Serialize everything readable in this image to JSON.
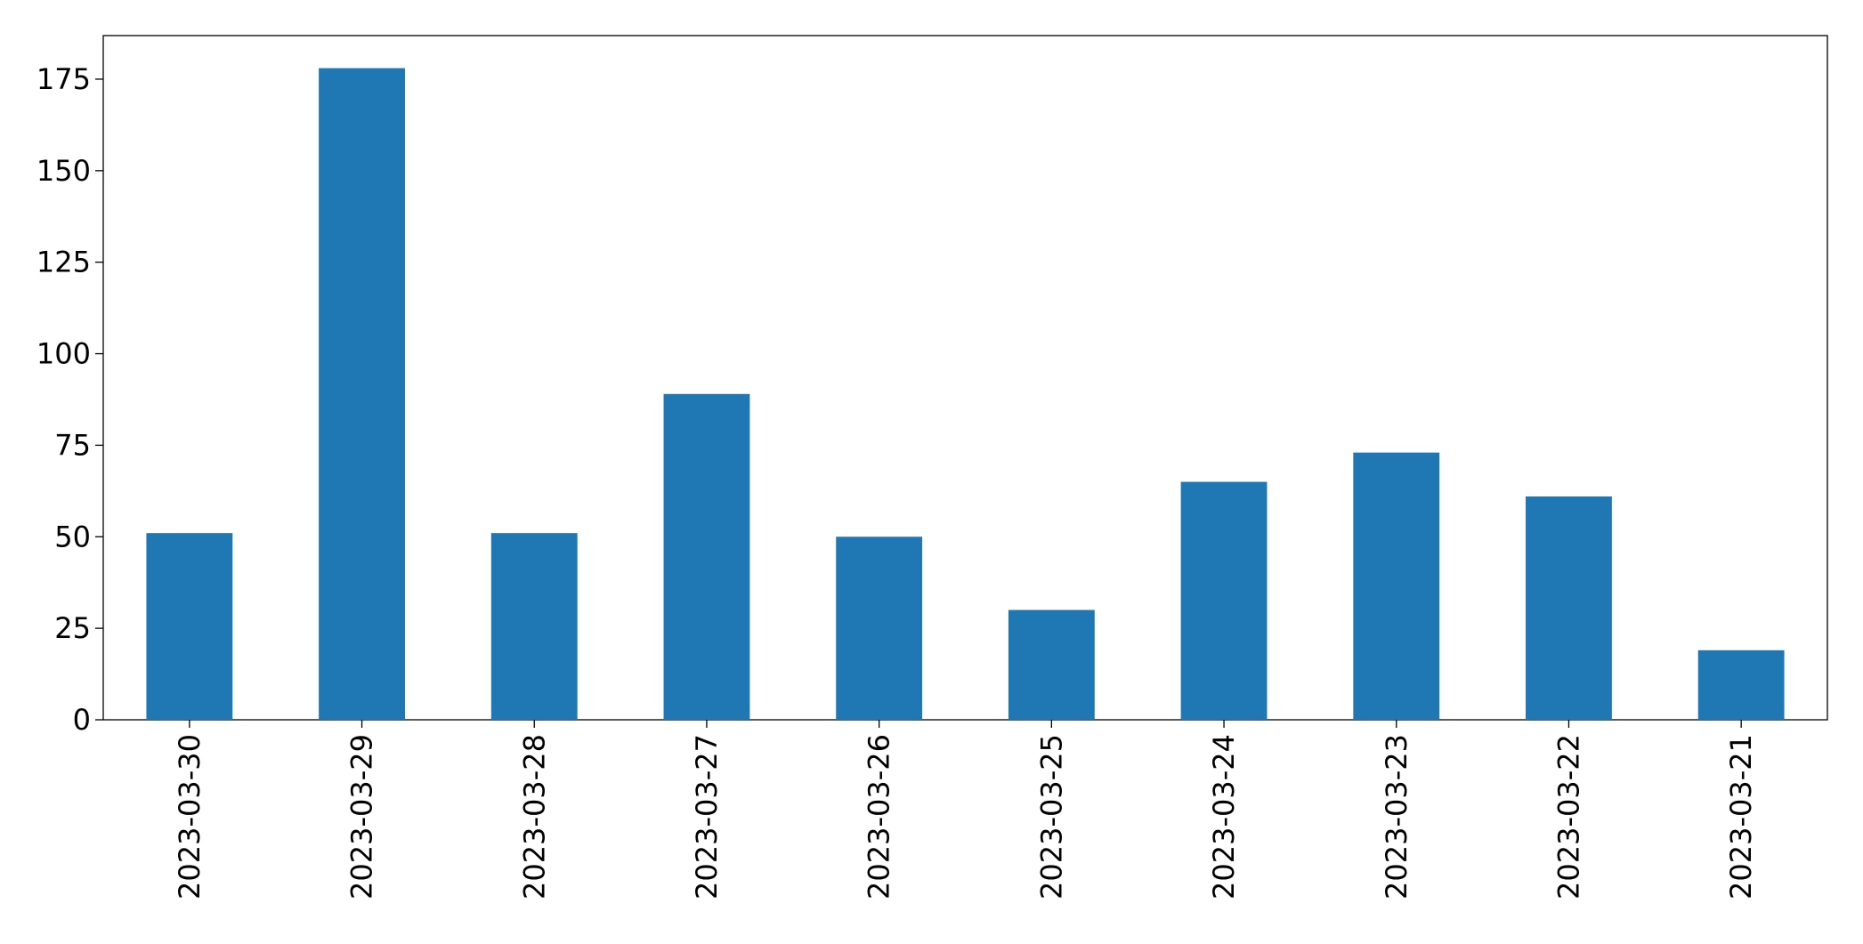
{
  "chart_data": {
    "type": "bar",
    "categories": [
      "2023-03-30",
      "2023-03-29",
      "2023-03-28",
      "2023-03-27",
      "2023-03-26",
      "2023-03-25",
      "2023-03-24",
      "2023-03-23",
      "2023-03-22",
      "2023-03-21"
    ],
    "values": [
      51,
      178,
      51,
      89,
      50,
      30,
      65,
      73,
      61,
      19
    ],
    "color": "#1f77b4",
    "ylim": [
      0,
      186.9
    ],
    "yticks": [
      0,
      25,
      50,
      75,
      100,
      125,
      150,
      175
    ],
    "grid": false
  }
}
